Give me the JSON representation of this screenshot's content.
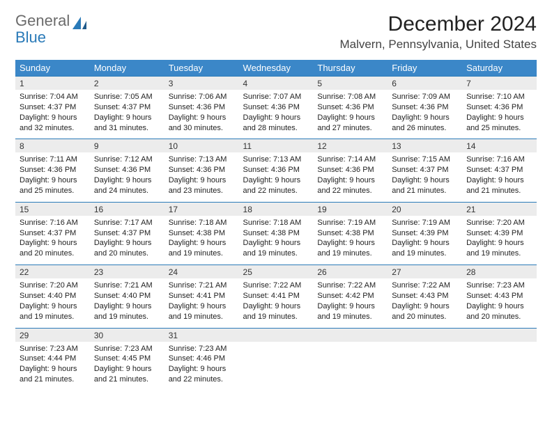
{
  "logo": {
    "word1": "General",
    "word2": "Blue"
  },
  "title": "December 2024",
  "location": "Malvern, Pennsylvania, United States",
  "colors": {
    "header_bg": "#3b87c8",
    "header_text": "#ffffff",
    "accent_border": "#2a7ab8",
    "daynum_bg": "#ececec",
    "body_text": "#222222",
    "logo_gray": "#6b6b6b",
    "logo_blue": "#2a7ab8",
    "page_bg": "#ffffff"
  },
  "typography": {
    "title_fontsize": 30,
    "location_fontsize": 17,
    "dayheader_fontsize": 13,
    "daynum_fontsize": 12,
    "detail_fontsize": 11,
    "font_family": "Arial"
  },
  "layout": {
    "cols": 7,
    "rows": 5
  },
  "day_headers": [
    "Sunday",
    "Monday",
    "Tuesday",
    "Wednesday",
    "Thursday",
    "Friday",
    "Saturday"
  ],
  "weeks": [
    [
      {
        "n": "1",
        "sunrise": "Sunrise: 7:04 AM",
        "sunset": "Sunset: 4:37 PM",
        "d1": "Daylight: 9 hours",
        "d2": "and 32 minutes."
      },
      {
        "n": "2",
        "sunrise": "Sunrise: 7:05 AM",
        "sunset": "Sunset: 4:37 PM",
        "d1": "Daylight: 9 hours",
        "d2": "and 31 minutes."
      },
      {
        "n": "3",
        "sunrise": "Sunrise: 7:06 AM",
        "sunset": "Sunset: 4:36 PM",
        "d1": "Daylight: 9 hours",
        "d2": "and 30 minutes."
      },
      {
        "n": "4",
        "sunrise": "Sunrise: 7:07 AM",
        "sunset": "Sunset: 4:36 PM",
        "d1": "Daylight: 9 hours",
        "d2": "and 28 minutes."
      },
      {
        "n": "5",
        "sunrise": "Sunrise: 7:08 AM",
        "sunset": "Sunset: 4:36 PM",
        "d1": "Daylight: 9 hours",
        "d2": "and 27 minutes."
      },
      {
        "n": "6",
        "sunrise": "Sunrise: 7:09 AM",
        "sunset": "Sunset: 4:36 PM",
        "d1": "Daylight: 9 hours",
        "d2": "and 26 minutes."
      },
      {
        "n": "7",
        "sunrise": "Sunrise: 7:10 AM",
        "sunset": "Sunset: 4:36 PM",
        "d1": "Daylight: 9 hours",
        "d2": "and 25 minutes."
      }
    ],
    [
      {
        "n": "8",
        "sunrise": "Sunrise: 7:11 AM",
        "sunset": "Sunset: 4:36 PM",
        "d1": "Daylight: 9 hours",
        "d2": "and 25 minutes."
      },
      {
        "n": "9",
        "sunrise": "Sunrise: 7:12 AM",
        "sunset": "Sunset: 4:36 PM",
        "d1": "Daylight: 9 hours",
        "d2": "and 24 minutes."
      },
      {
        "n": "10",
        "sunrise": "Sunrise: 7:13 AM",
        "sunset": "Sunset: 4:36 PM",
        "d1": "Daylight: 9 hours",
        "d2": "and 23 minutes."
      },
      {
        "n": "11",
        "sunrise": "Sunrise: 7:13 AM",
        "sunset": "Sunset: 4:36 PM",
        "d1": "Daylight: 9 hours",
        "d2": "and 22 minutes."
      },
      {
        "n": "12",
        "sunrise": "Sunrise: 7:14 AM",
        "sunset": "Sunset: 4:36 PM",
        "d1": "Daylight: 9 hours",
        "d2": "and 22 minutes."
      },
      {
        "n": "13",
        "sunrise": "Sunrise: 7:15 AM",
        "sunset": "Sunset: 4:37 PM",
        "d1": "Daylight: 9 hours",
        "d2": "and 21 minutes."
      },
      {
        "n": "14",
        "sunrise": "Sunrise: 7:16 AM",
        "sunset": "Sunset: 4:37 PM",
        "d1": "Daylight: 9 hours",
        "d2": "and 21 minutes."
      }
    ],
    [
      {
        "n": "15",
        "sunrise": "Sunrise: 7:16 AM",
        "sunset": "Sunset: 4:37 PM",
        "d1": "Daylight: 9 hours",
        "d2": "and 20 minutes."
      },
      {
        "n": "16",
        "sunrise": "Sunrise: 7:17 AM",
        "sunset": "Sunset: 4:37 PM",
        "d1": "Daylight: 9 hours",
        "d2": "and 20 minutes."
      },
      {
        "n": "17",
        "sunrise": "Sunrise: 7:18 AM",
        "sunset": "Sunset: 4:38 PM",
        "d1": "Daylight: 9 hours",
        "d2": "and 19 minutes."
      },
      {
        "n": "18",
        "sunrise": "Sunrise: 7:18 AM",
        "sunset": "Sunset: 4:38 PM",
        "d1": "Daylight: 9 hours",
        "d2": "and 19 minutes."
      },
      {
        "n": "19",
        "sunrise": "Sunrise: 7:19 AM",
        "sunset": "Sunset: 4:38 PM",
        "d1": "Daylight: 9 hours",
        "d2": "and 19 minutes."
      },
      {
        "n": "20",
        "sunrise": "Sunrise: 7:19 AM",
        "sunset": "Sunset: 4:39 PM",
        "d1": "Daylight: 9 hours",
        "d2": "and 19 minutes."
      },
      {
        "n": "21",
        "sunrise": "Sunrise: 7:20 AM",
        "sunset": "Sunset: 4:39 PM",
        "d1": "Daylight: 9 hours",
        "d2": "and 19 minutes."
      }
    ],
    [
      {
        "n": "22",
        "sunrise": "Sunrise: 7:20 AM",
        "sunset": "Sunset: 4:40 PM",
        "d1": "Daylight: 9 hours",
        "d2": "and 19 minutes."
      },
      {
        "n": "23",
        "sunrise": "Sunrise: 7:21 AM",
        "sunset": "Sunset: 4:40 PM",
        "d1": "Daylight: 9 hours",
        "d2": "and 19 minutes."
      },
      {
        "n": "24",
        "sunrise": "Sunrise: 7:21 AM",
        "sunset": "Sunset: 4:41 PM",
        "d1": "Daylight: 9 hours",
        "d2": "and 19 minutes."
      },
      {
        "n": "25",
        "sunrise": "Sunrise: 7:22 AM",
        "sunset": "Sunset: 4:41 PM",
        "d1": "Daylight: 9 hours",
        "d2": "and 19 minutes."
      },
      {
        "n": "26",
        "sunrise": "Sunrise: 7:22 AM",
        "sunset": "Sunset: 4:42 PM",
        "d1": "Daylight: 9 hours",
        "d2": "and 19 minutes."
      },
      {
        "n": "27",
        "sunrise": "Sunrise: 7:22 AM",
        "sunset": "Sunset: 4:43 PM",
        "d1": "Daylight: 9 hours",
        "d2": "and 20 minutes."
      },
      {
        "n": "28",
        "sunrise": "Sunrise: 7:23 AM",
        "sunset": "Sunset: 4:43 PM",
        "d1": "Daylight: 9 hours",
        "d2": "and 20 minutes."
      }
    ],
    [
      {
        "n": "29",
        "sunrise": "Sunrise: 7:23 AM",
        "sunset": "Sunset: 4:44 PM",
        "d1": "Daylight: 9 hours",
        "d2": "and 21 minutes."
      },
      {
        "n": "30",
        "sunrise": "Sunrise: 7:23 AM",
        "sunset": "Sunset: 4:45 PM",
        "d1": "Daylight: 9 hours",
        "d2": "and 21 minutes."
      },
      {
        "n": "31",
        "sunrise": "Sunrise: 7:23 AM",
        "sunset": "Sunset: 4:46 PM",
        "d1": "Daylight: 9 hours",
        "d2": "and 22 minutes."
      },
      null,
      null,
      null,
      null
    ]
  ]
}
